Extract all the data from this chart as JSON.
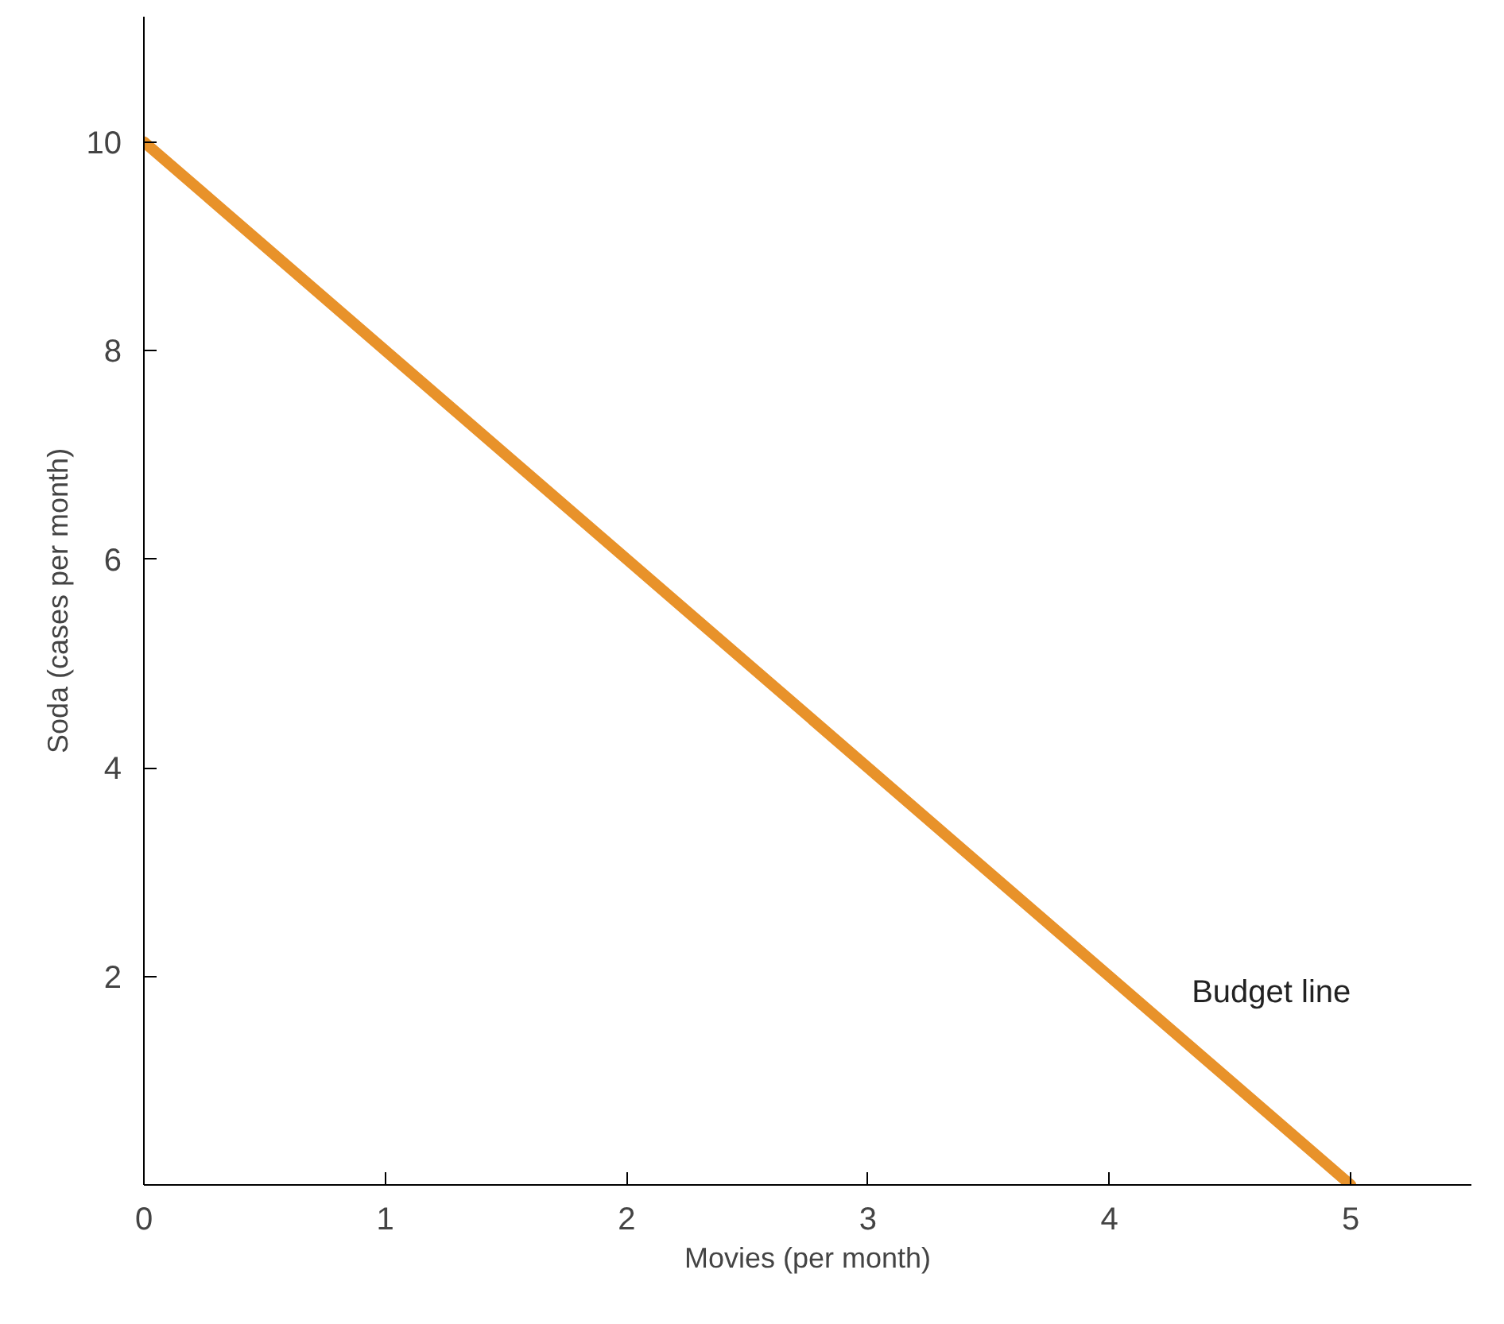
{
  "chart_data": {
    "type": "line",
    "xlabel": "Movies (per month)",
    "ylabel": "Soda (cases per month)",
    "x": [
      0,
      5
    ],
    "series": [
      {
        "name": "Budget line",
        "color": "#e8922a",
        "values": [
          10,
          0
        ]
      }
    ],
    "xlim": [
      0,
      5.5
    ],
    "ylim": [
      0,
      11.2
    ],
    "xticks": [
      0,
      1,
      2,
      3,
      4,
      5
    ],
    "yticks": [
      2,
      4,
      6,
      8,
      10
    ],
    "grid": false
  }
}
